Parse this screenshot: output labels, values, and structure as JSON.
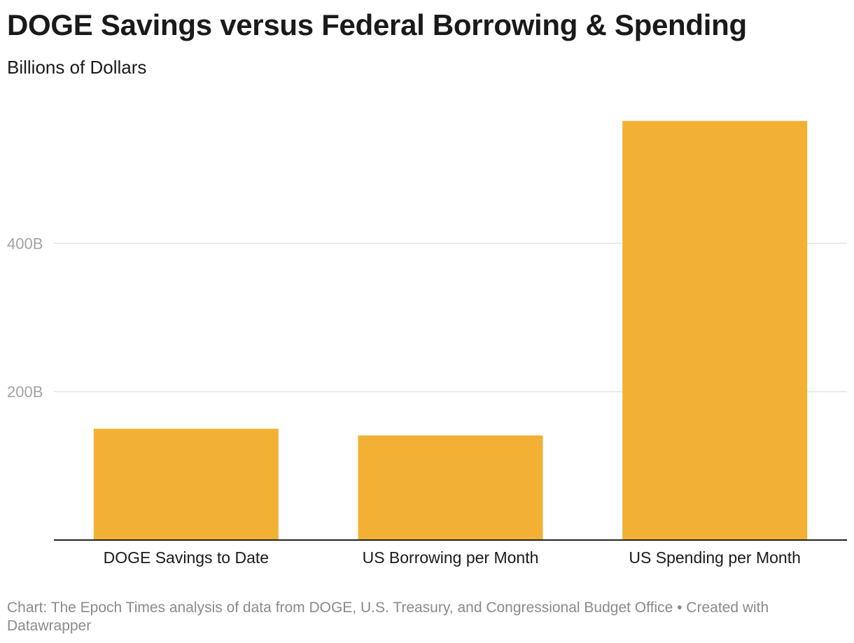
{
  "header": {
    "title": "DOGE Savings versus Federal Borrowing & Spending",
    "subtitle": "Billions of Dollars"
  },
  "chart_data": {
    "type": "bar",
    "categories": [
      "DOGE Savings to Date",
      "US Borrowing per Month",
      "US Spending per Month"
    ],
    "values": [
      150,
      141,
      565
    ],
    "unit": "B",
    "yticks": [
      200,
      400
    ],
    "ytick_labels": [
      "200B",
      "400B"
    ],
    "ylim": [
      0,
      600
    ],
    "grid": true,
    "legend": "none",
    "bar_color": "#f2b134",
    "grid_color": "#e3e3e3",
    "axis_color": "#222222",
    "tick_label_color": "#a3a3a3"
  },
  "footer": {
    "source": "Chart: The Epoch Times analysis of data from DOGE, U.S. Treasury, and Congressional Budget Office • Created with Datawrapper"
  }
}
